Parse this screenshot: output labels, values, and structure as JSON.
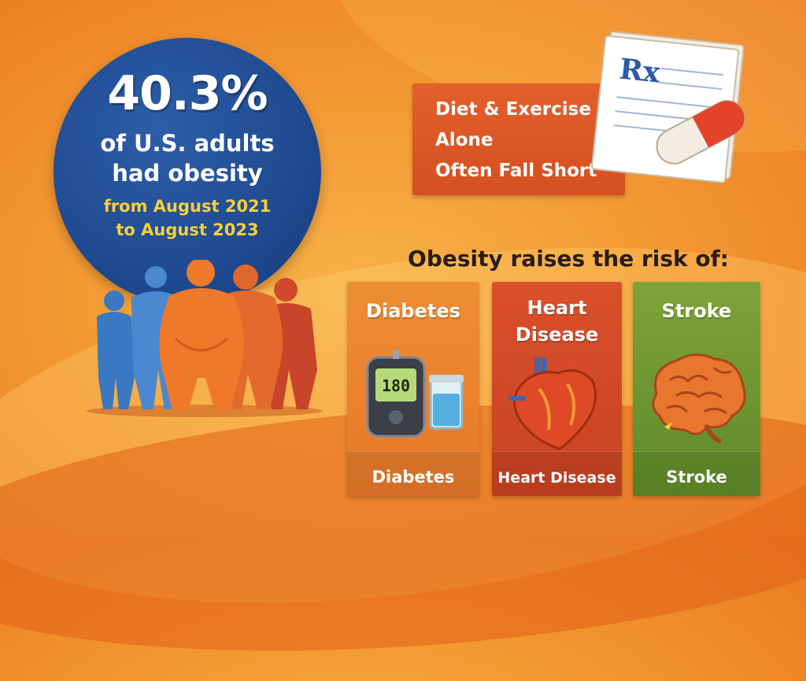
{
  "stat": {
    "percent": "40.3%",
    "line1": "of U.S. adults",
    "line2": "had obesity",
    "date_line1": "from August 2021",
    "date_line2": "to August 2023"
  },
  "diet": {
    "line1": "Diet & Exercise",
    "line2": "Alone",
    "line3": "Often Fall Short",
    "rx_symbol": "Rx"
  },
  "risk_heading": "Obesity raises the risk of:",
  "cards": [
    {
      "title": "Diabetes",
      "footer": "Diabetes",
      "meter_reading": "180",
      "color": "#ee8d33",
      "icon": "glucose-meter-icon"
    },
    {
      "title": "Heart Disease",
      "footer": "Heart Disease",
      "color": "#d9502a",
      "icon": "heart-icon"
    },
    {
      "title": "Stroke",
      "footer": "Stroke",
      "color": "#7ea33a",
      "icon": "brain-icon"
    }
  ],
  "colors": {
    "circle_blue": "#1f4a90",
    "date_yellow": "#f7cf3b",
    "background_orange": "#f39a33"
  }
}
